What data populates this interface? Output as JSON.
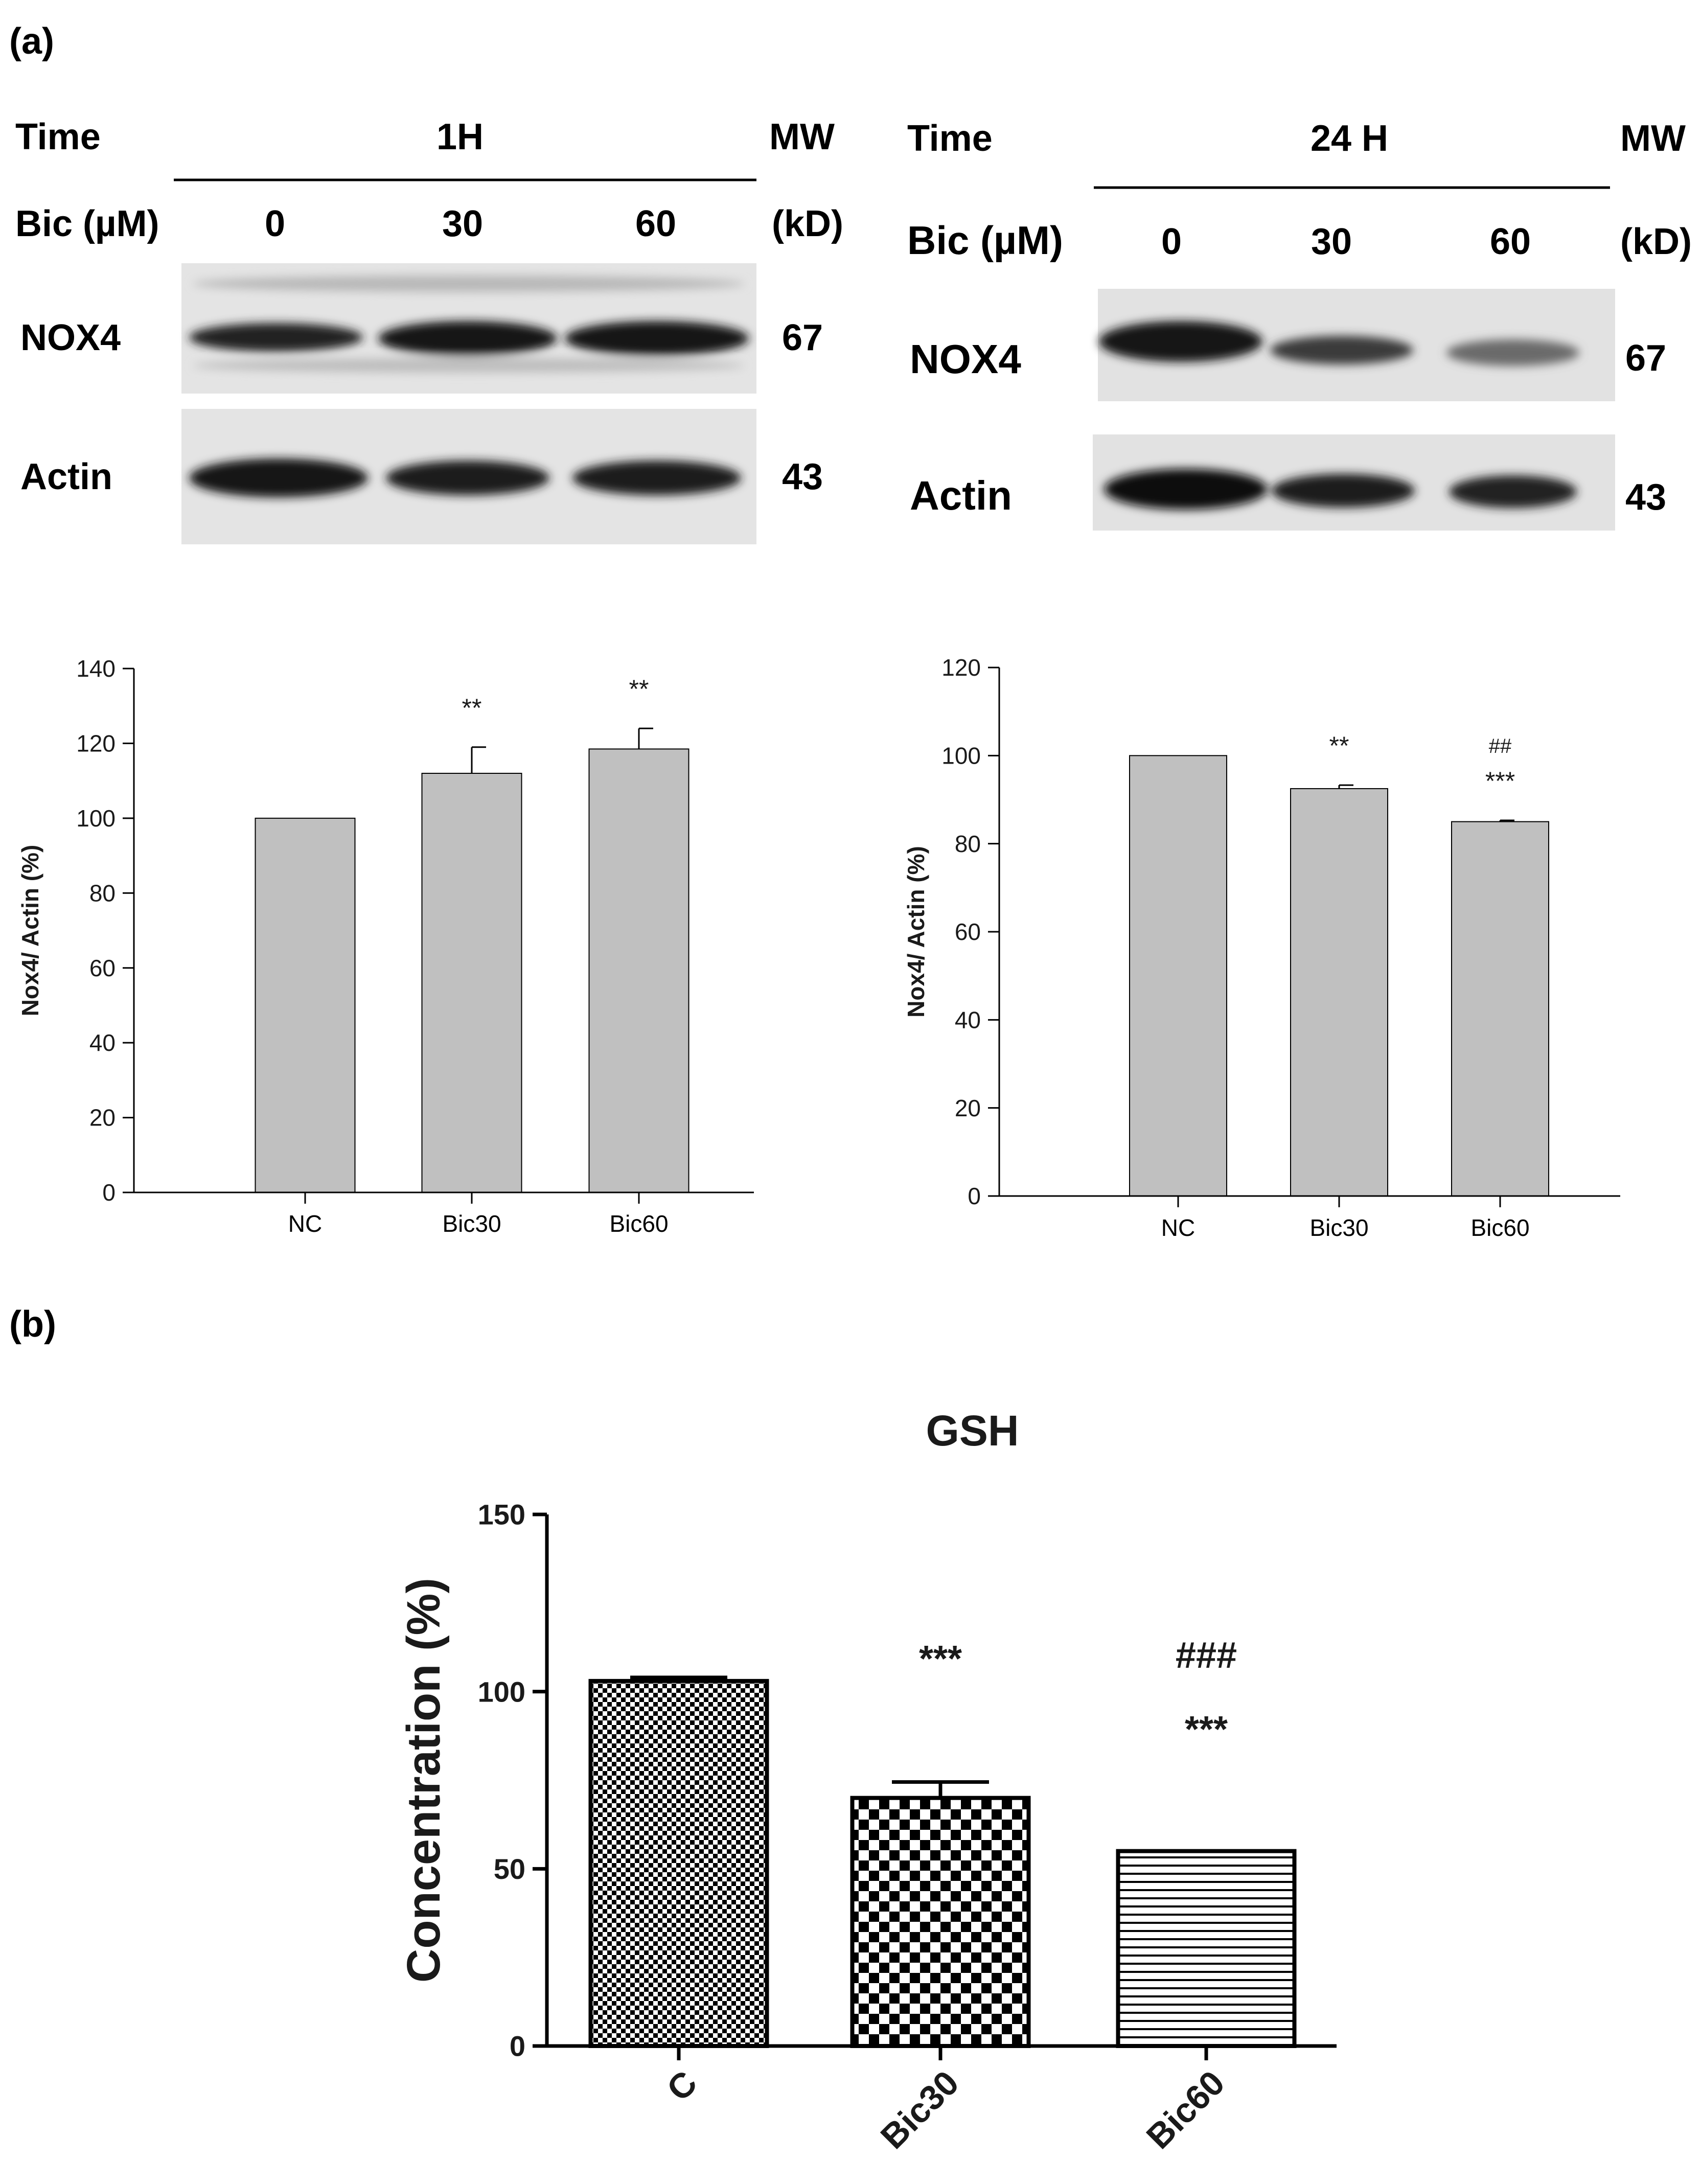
{
  "panel_a_label": "(a)",
  "panel_b_label": "(b)",
  "blot_1h": {
    "time_label": "Time",
    "time_value": "1H",
    "mw_label": "MW",
    "dose_label": "Bic (µM)",
    "kd_label": "(kD)",
    "lanes": [
      "0",
      "30",
      "60"
    ],
    "rows": [
      {
        "name": "NOX4",
        "mw": "67"
      },
      {
        "name": "Actin",
        "mw": "43"
      }
    ]
  },
  "blot_24h": {
    "time_label": "Time",
    "time_value": "24 H",
    "mw_label": "MW",
    "dose_label": "Bic (µM)",
    "kd_label": "(kD)",
    "lanes": [
      "0",
      "30",
      "60"
    ],
    "rows": [
      {
        "name": "NOX4",
        "mw": "67"
      },
      {
        "name": "Actin",
        "mw": "43"
      }
    ]
  },
  "colors": {
    "bar_fill": "#c0c0c0",
    "axis": "#000000",
    "blot_background": "#e6e6e6",
    "band": "#1a1a1a"
  },
  "chart_data": [
    {
      "type": "bar",
      "title": "",
      "xlabel": "",
      "ylabel": "Nox4/ Actin (%)",
      "ylim": [
        0,
        140
      ],
      "yticks": [
        0,
        20,
        40,
        60,
        80,
        100,
        120,
        140
      ],
      "categories": [
        "NC",
        "Bic30",
        "Bic60"
      ],
      "values": [
        100,
        112,
        118.5
      ],
      "errors": [
        0,
        7,
        5.5
      ],
      "annotations": [
        [],
        [
          "**"
        ],
        [
          "**"
        ]
      ],
      "grid": false
    },
    {
      "type": "bar",
      "title": "",
      "xlabel": "",
      "ylabel": "Nox4/ Actin (%)",
      "ylim": [
        0,
        120
      ],
      "yticks": [
        0,
        20,
        40,
        60,
        80,
        100,
        120
      ],
      "categories": [
        "NC",
        "Bic30",
        "Bic60"
      ],
      "values": [
        100,
        92.5,
        85
      ],
      "errors": [
        0,
        0.8,
        0.3
      ],
      "annotations": [
        [],
        [
          "**"
        ],
        [
          "##",
          "***"
        ]
      ],
      "grid": false
    },
    {
      "type": "bar",
      "title": "GSH",
      "xlabel": "",
      "ylabel": "Concentration (%)",
      "ylim": [
        0,
        150
      ],
      "yticks": [
        0,
        50,
        100,
        150
      ],
      "categories": [
        "C",
        "Bic30",
        "Bic60"
      ],
      "values": [
        103,
        70,
        55
      ],
      "errors": [
        1,
        4.5,
        0
      ],
      "annotations": [
        [],
        [
          "***"
        ],
        [
          "###",
          "***"
        ]
      ],
      "patterns": [
        "fine-checker",
        "coarse-checker",
        "horizontal-lines"
      ],
      "grid": false
    }
  ]
}
